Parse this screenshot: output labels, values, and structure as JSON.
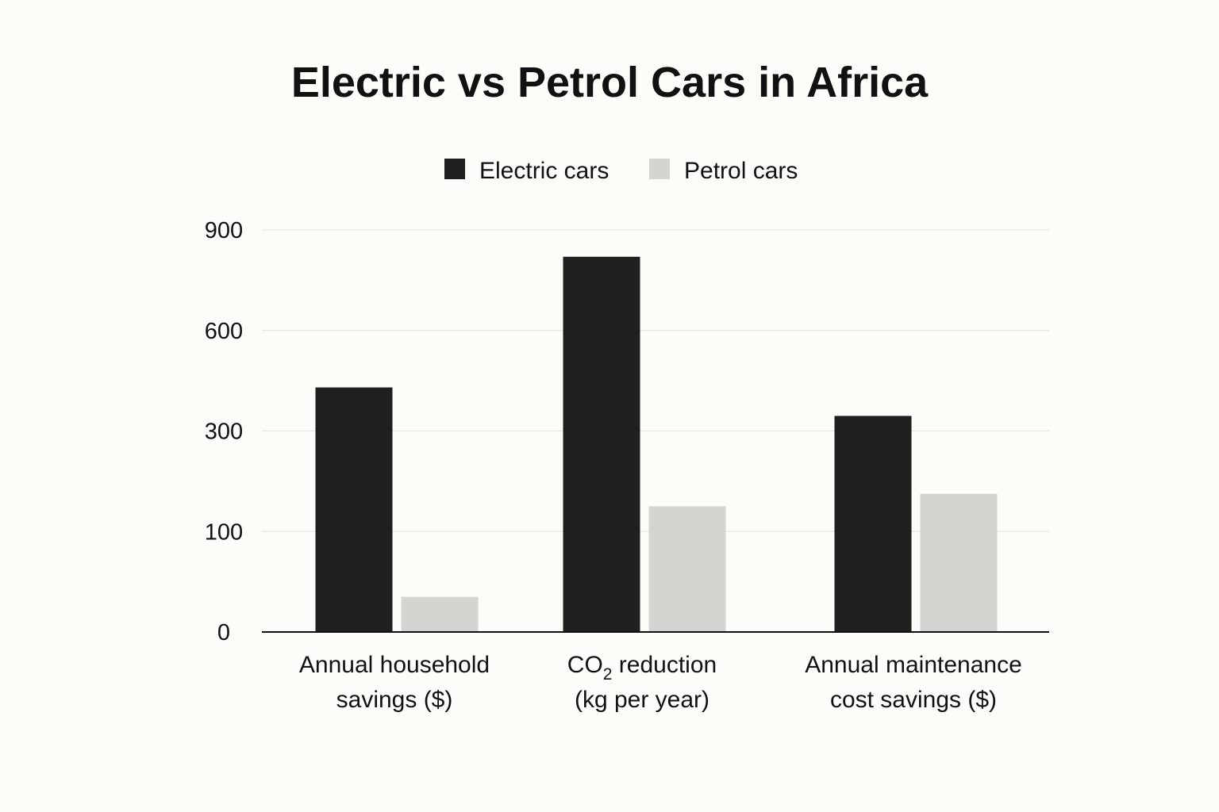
{
  "chart_data": {
    "type": "bar",
    "title": "Electric vs Petrol Cars in Africa",
    "categories": [
      {
        "lines": [
          "Annual household",
          "savings ($)"
        ]
      },
      {
        "lines": [
          "CO|2| reduction",
          "(kg per year)"
        ]
      },
      {
        "lines": [
          "Annual maintenance",
          "cost savings ($)"
        ]
      }
    ],
    "series": [
      {
        "name": "Electric cars",
        "color": "#1f1f1f",
        "values": [
          430,
          820,
          345
        ]
      },
      {
        "name": "Petrol cars",
        "color": "#d4d4d0",
        "values": [
          35,
          150,
          175
        ]
      }
    ],
    "y_ticks": [
      {
        "label": "0",
        "value": 0
      },
      {
        "label": "100",
        "value": 100
      },
      {
        "label": "300",
        "value": 300
      },
      {
        "label": "600",
        "value": 600
      },
      {
        "label": "900",
        "value": 900
      }
    ],
    "grid": true,
    "legend": "top-center",
    "note": "Axis ticks are evenly spaced but labeled 0, 100, 300, 600, 900; values are read relative to the drawn tick positions."
  }
}
